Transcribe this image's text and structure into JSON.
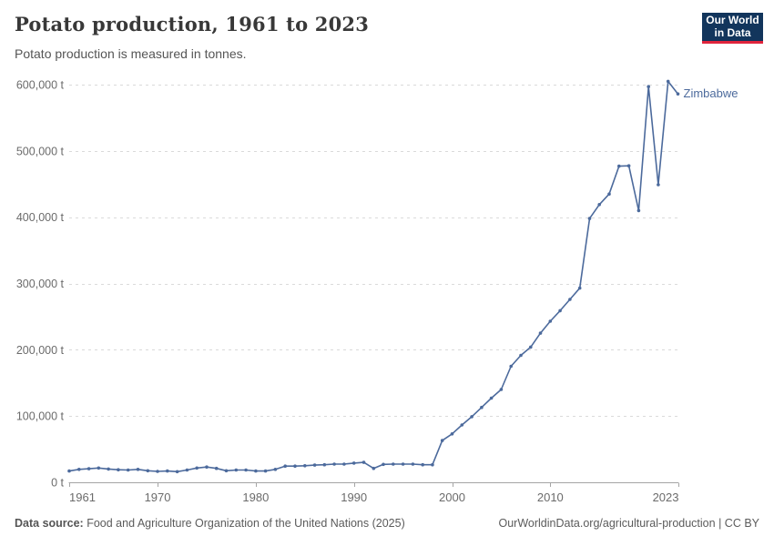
{
  "header": {
    "title": "Potato production, 1961 to 2023",
    "subtitle": "Potato production is measured in tonnes.",
    "logo": {
      "line1": "Our World",
      "line2": "in Data"
    }
  },
  "colors": {
    "series": "#4c6a9c",
    "grid": "#dadada",
    "axis": "#a5a5a5",
    "tick_text": "#6b6b6b",
    "logo_bg": "#12355c",
    "logo_red": "#e0243c"
  },
  "chart_data": {
    "type": "line",
    "title": "Potato production, 1961 to 2023",
    "subtitle": "Potato production is measured in tonnes.",
    "unit": "tonnes",
    "entity_label": "Zimbabwe",
    "xlim": [
      1961,
      2023
    ],
    "ylim": [
      0,
      600000
    ],
    "grid": "dashed-horizontal",
    "x_ticks": [
      1961,
      1970,
      1980,
      1990,
      2000,
      2010,
      2023
    ],
    "y_ticks": [
      {
        "value": 0,
        "label": "0 t"
      },
      {
        "value": 100000,
        "label": "100,000 t"
      },
      {
        "value": 200000,
        "label": "200,000 t"
      },
      {
        "value": 300000,
        "label": "300,000 t"
      },
      {
        "value": 400000,
        "label": "400,000 t"
      },
      {
        "value": 500000,
        "label": "500,000 t"
      },
      {
        "value": 600000,
        "label": "600,000 t"
      }
    ],
    "series": [
      {
        "name": "Zimbabwe",
        "x": [
          1961,
          1962,
          1963,
          1964,
          1965,
          1966,
          1967,
          1968,
          1969,
          1970,
          1971,
          1972,
          1973,
          1974,
          1975,
          1976,
          1977,
          1978,
          1979,
          1980,
          1981,
          1982,
          1983,
          1984,
          1985,
          1986,
          1987,
          1988,
          1989,
          1990,
          1991,
          1992,
          1993,
          1994,
          1995,
          1996,
          1997,
          1998,
          1999,
          2000,
          2001,
          2002,
          2003,
          2004,
          2005,
          2006,
          2007,
          2008,
          2009,
          2010,
          2011,
          2012,
          2013,
          2014,
          2015,
          2016,
          2017,
          2018,
          2019,
          2020,
          2021,
          2022,
          2023
        ],
        "values": [
          17000,
          19500,
          20500,
          21500,
          20000,
          19000,
          18500,
          19500,
          17500,
          16500,
          17000,
          16000,
          18500,
          21500,
          23000,
          21000,
          17500,
          18500,
          18500,
          17000,
          17000,
          19500,
          24500,
          24500,
          25000,
          26000,
          26500,
          27500,
          27500,
          29000,
          30000,
          21000,
          27000,
          27500,
          27500,
          27500,
          26500,
          26500,
          63000,
          73000,
          86500,
          99000,
          113000,
          127000,
          140000,
          175000,
          191500,
          204000,
          225000,
          243000,
          259000,
          276000,
          293000,
          398000,
          419000,
          435000,
          477000,
          477500,
          410000,
          597000,
          449000,
          605000,
          586000
        ]
      }
    ]
  },
  "footer": {
    "source_label": "Data source:",
    "source_value": "Food and Agriculture Organization of the United Nations (2025)",
    "url": "OurWorldinData.org/agricultural-production",
    "separator": "|",
    "license": "CC BY"
  }
}
